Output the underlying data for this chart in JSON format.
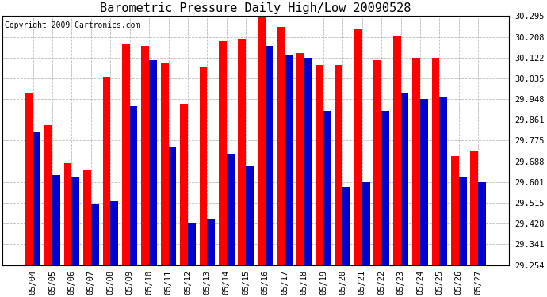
{
  "title": "Barometric Pressure Daily High/Low 20090528",
  "copyright": "Copyright 2009 Cartronics.com",
  "categories": [
    "05/04",
    "05/05",
    "05/06",
    "05/07",
    "05/08",
    "05/09",
    "05/10",
    "05/11",
    "05/12",
    "05/13",
    "05/14",
    "05/15",
    "05/16",
    "05/17",
    "05/18",
    "05/19",
    "05/20",
    "05/21",
    "05/22",
    "05/23",
    "05/24",
    "05/25",
    "05/26",
    "05/27"
  ],
  "highs": [
    29.97,
    29.84,
    29.68,
    29.65,
    30.04,
    30.18,
    30.17,
    30.1,
    29.93,
    30.08,
    30.19,
    30.2,
    30.29,
    30.25,
    30.14,
    30.09,
    30.09,
    30.24,
    30.11,
    30.21,
    30.12,
    30.12,
    29.71,
    29.73
  ],
  "lows": [
    29.81,
    29.63,
    29.62,
    29.51,
    29.52,
    29.92,
    30.11,
    29.75,
    29.43,
    29.45,
    29.72,
    29.67,
    30.17,
    30.13,
    30.12,
    29.9,
    29.58,
    29.6,
    29.9,
    29.97,
    29.95,
    29.96,
    29.62,
    29.6
  ],
  "high_color": "#ff0000",
  "low_color": "#0000cc",
  "bg_color": "#ffffff",
  "grid_color": "#aaaaaa",
  "ymin": 29.254,
  "ymax": 30.295,
  "yticks": [
    29.254,
    29.341,
    29.428,
    29.515,
    29.601,
    29.688,
    29.775,
    29.861,
    29.948,
    30.035,
    30.122,
    30.208,
    30.295
  ],
  "title_fontsize": 11,
  "tick_fontsize": 7.5,
  "copyright_fontsize": 7
}
